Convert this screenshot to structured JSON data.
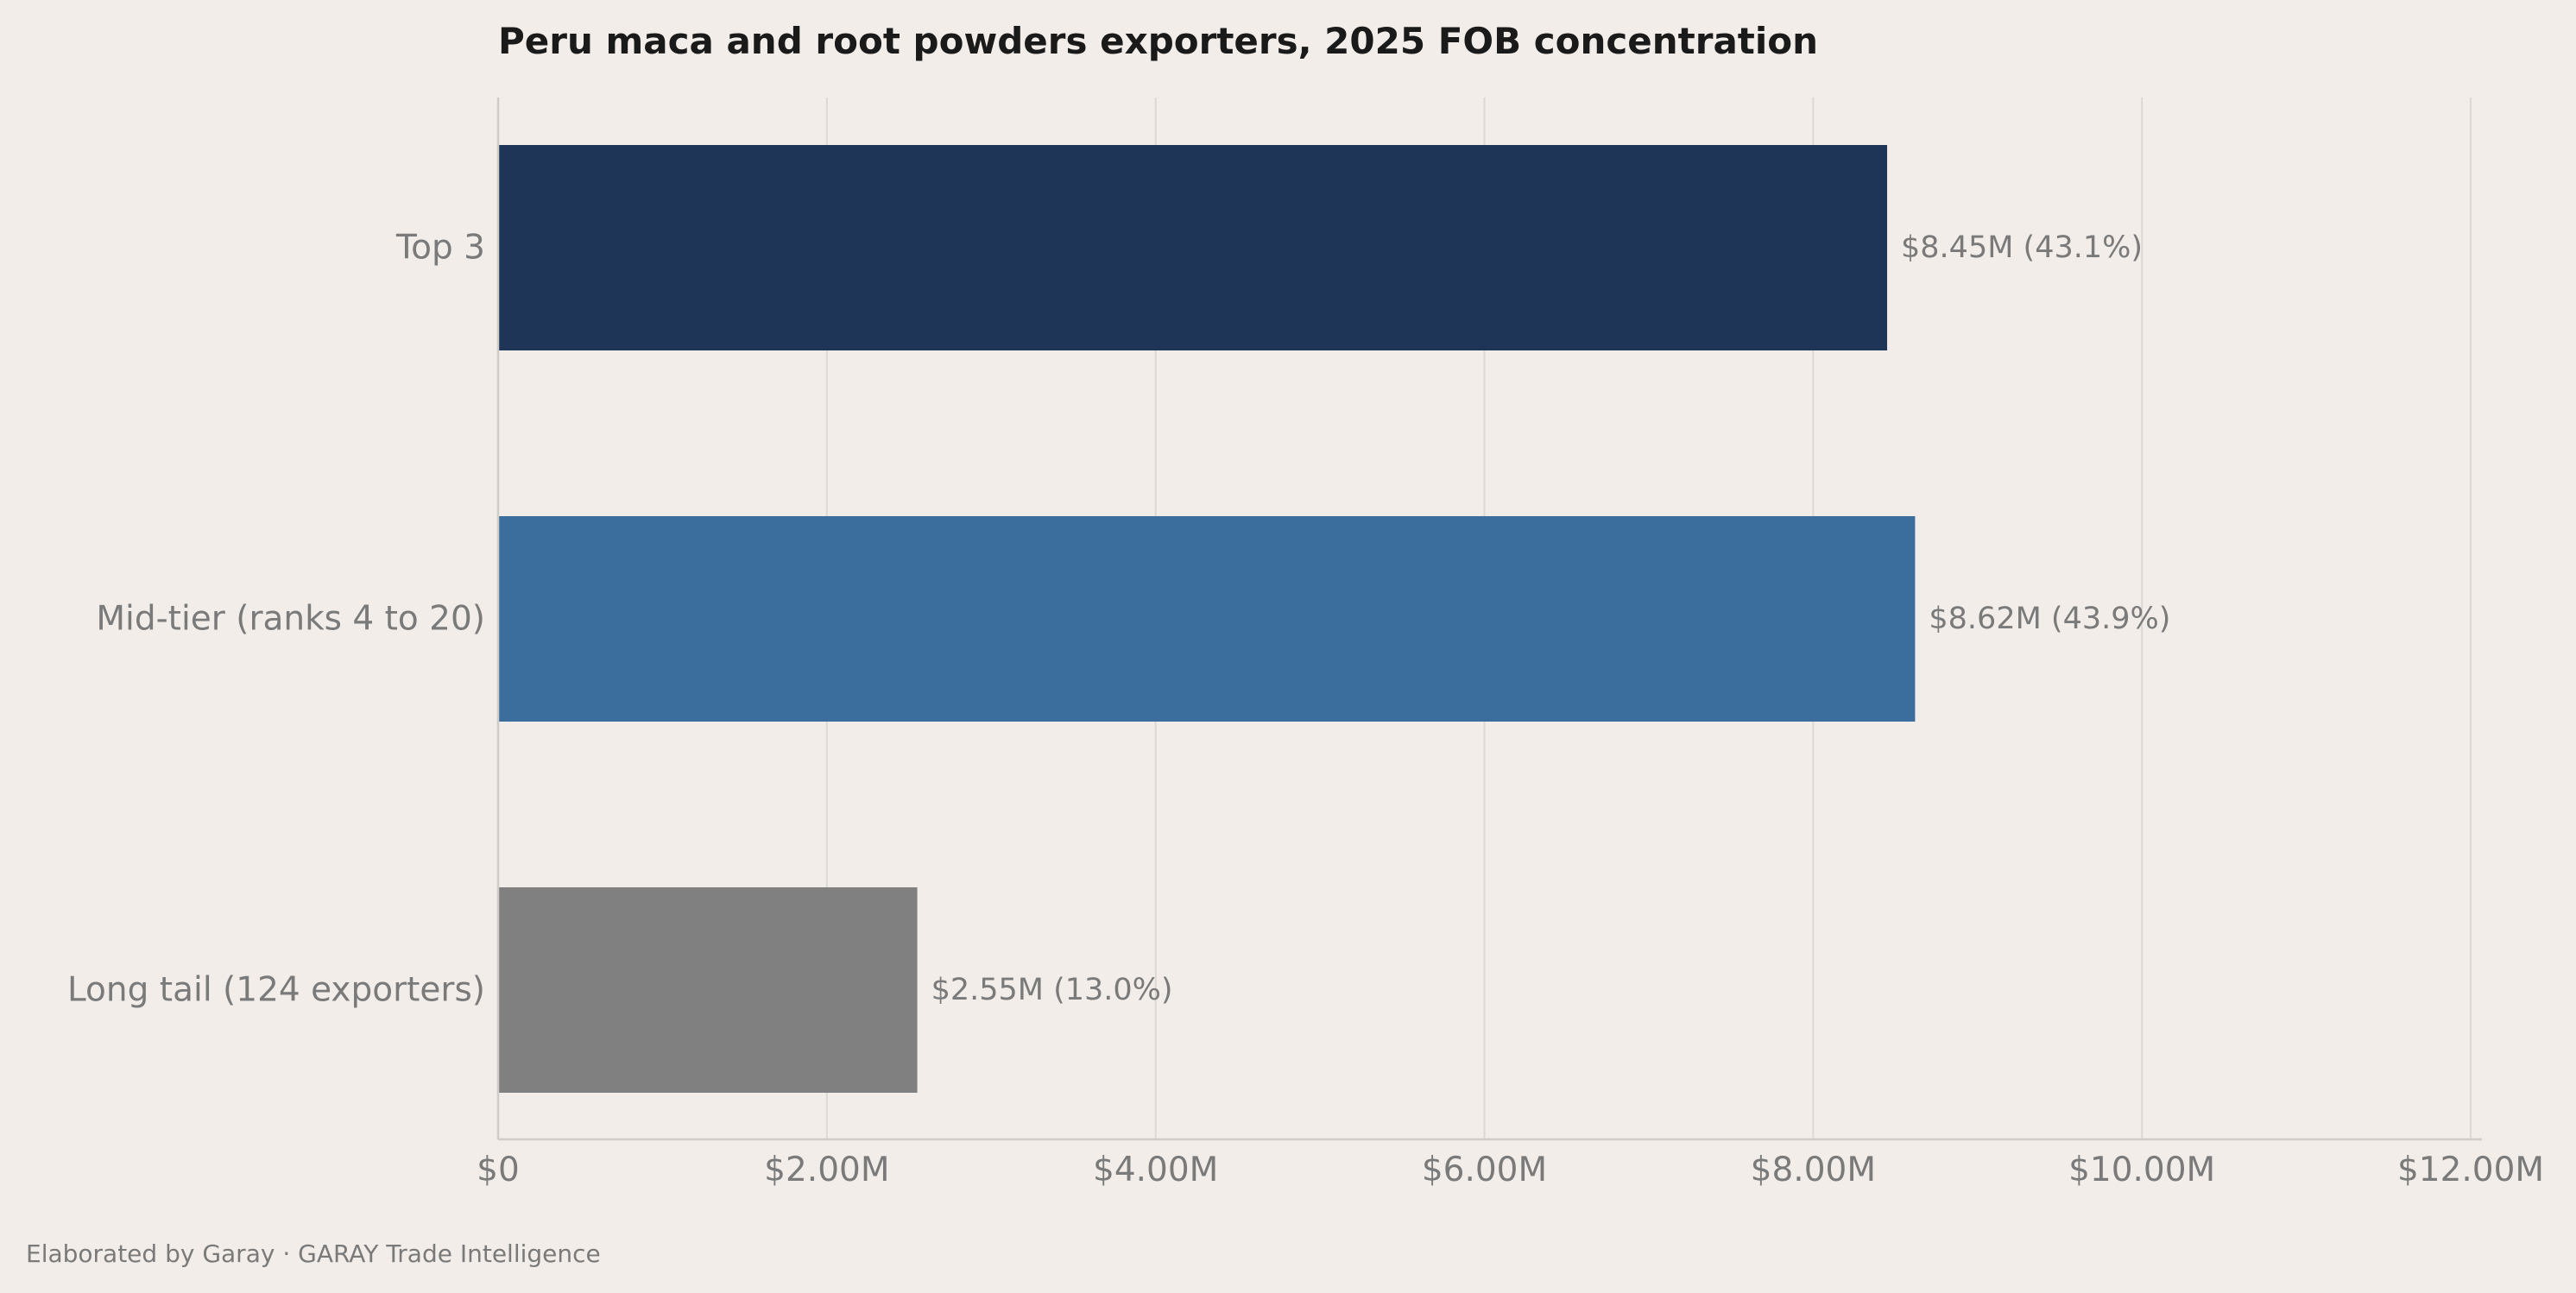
{
  "chart_data": {
    "type": "bar",
    "orientation": "horizontal",
    "title": "Peru maca and root powders exporters, 2025 FOB concentration",
    "categories": [
      "Top 3",
      "Mid-tier (ranks 4 to 20)",
      "Long tail (124 exporters)"
    ],
    "values": [
      8.45,
      8.62,
      2.55
    ],
    "value_unit": "USD millions",
    "data_labels": [
      "$8.45M  (43.1%)",
      "$8.62M  (43.9%)",
      "$2.55M  (13.0%)"
    ],
    "bar_colors": [
      "#1e3557",
      "#3b6e9c",
      "#808080"
    ],
    "xlim": [
      0,
      12
    ],
    "x_ticks": [
      0,
      2,
      4,
      6,
      8,
      10,
      12
    ],
    "x_tick_labels": [
      "$0",
      "$2.00M",
      "$4.00M",
      "$6.00M",
      "$8.00M",
      "$10.00M",
      "$12.00M"
    ],
    "xlabel": "",
    "ylabel": "",
    "grid": "vertical",
    "legend": "none"
  },
  "footer": "Elaborated by Garay  ·  GARAY Trade Intelligence",
  "colors": {
    "background": "#f2ede9",
    "grid": "#dcd8d4",
    "axis": "#d0ccc8",
    "text_muted": "#7a7a7a",
    "title": "#1a1a1a"
  }
}
